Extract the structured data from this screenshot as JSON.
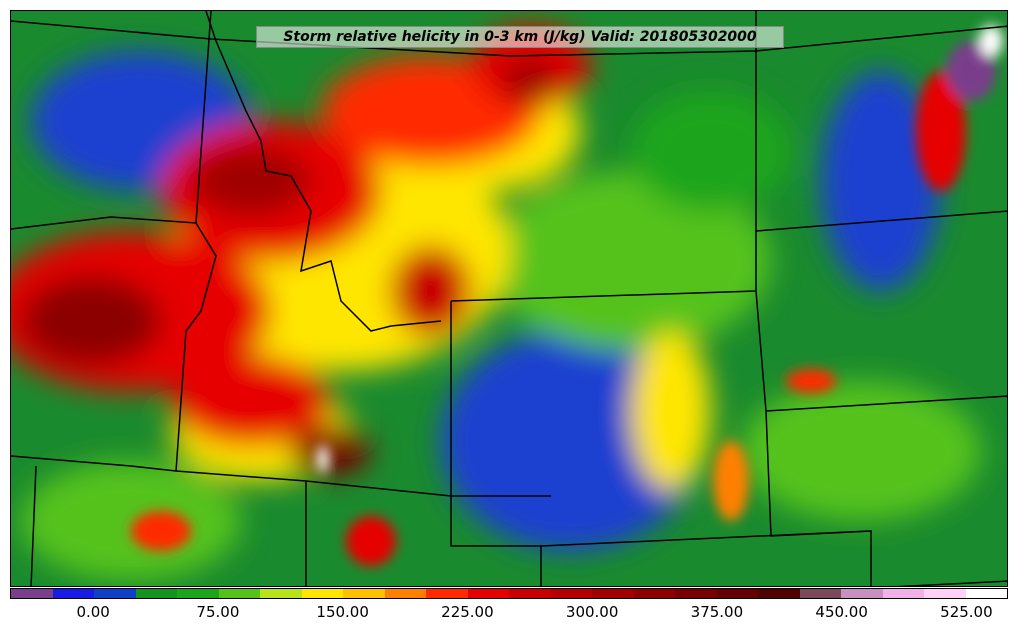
{
  "title": "Storm relative helicity in 0-3 km (J/kg) Valid: 201805302000",
  "colorbar": {
    "colors": [
      "#7a3e8c",
      "#1a1ae6",
      "#1040c8",
      "#13941f",
      "#1aa51a",
      "#55c21a",
      "#b8e21a",
      "#ffe600",
      "#ffc000",
      "#ff8000",
      "#ff2a00",
      "#e60000",
      "#c80000",
      "#b40000",
      "#a00000",
      "#8c0000",
      "#780000",
      "#640000",
      "#500000",
      "#7a4a5a",
      "#c890c0",
      "#f0b0e8",
      "#ffd0f8",
      "#ffffff"
    ],
    "ticks": [
      "0.00",
      "75.00",
      "150.00",
      "225.00",
      "300.00",
      "375.00",
      "450.00",
      "525.00"
    ]
  }
}
